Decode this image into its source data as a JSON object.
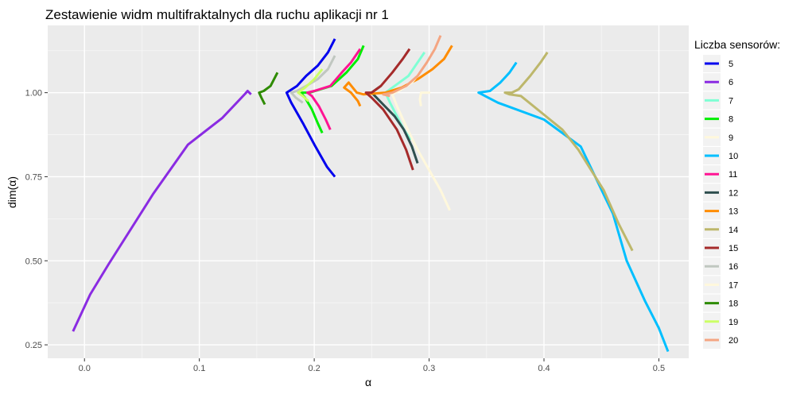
{
  "chart_data": {
    "type": "line",
    "title": "Zestawienie widm multifraktalnych dla ruchu aplikacji nr 1",
    "xlabel": "α",
    "ylabel": "dim(α)",
    "xlim": [
      -0.032,
      0.526
    ],
    "ylim": [
      0.21,
      1.2
    ],
    "x_ticks": [
      0.0,
      0.1,
      0.2,
      0.3,
      0.4,
      0.5
    ],
    "x_tick_labels": [
      "0.0",
      "0.1",
      "0.2",
      "0.3",
      "0.4",
      "0.5"
    ],
    "y_ticks": [
      0.25,
      0.5,
      0.75,
      1.0
    ],
    "y_tick_labels": [
      "0.25",
      "0.50",
      "0.75",
      "1.00"
    ],
    "grid": true,
    "panel_background": "#ebebeb",
    "legend": {
      "title": "Liczba sensorów:",
      "position": "right"
    },
    "series": [
      {
        "name": "5",
        "color": "#0000ee",
        "points": [
          [
            0.218,
            1.16
          ],
          [
            0.212,
            1.12
          ],
          [
            0.203,
            1.08
          ],
          [
            0.193,
            1.05
          ],
          [
            0.185,
            1.02
          ],
          [
            0.176,
            1.0
          ],
          [
            0.18,
            0.97
          ],
          [
            0.19,
            0.91
          ],
          [
            0.201,
            0.84
          ],
          [
            0.211,
            0.78
          ],
          [
            0.218,
            0.75
          ]
        ]
      },
      {
        "name": "6",
        "color": "#8a2be2",
        "points": [
          [
            0.145,
            0.995
          ],
          [
            0.142,
            1.005
          ],
          [
            0.14,
            0.997
          ],
          [
            0.12,
            0.925
          ],
          [
            0.09,
            0.845
          ],
          [
            0.06,
            0.7
          ],
          [
            0.021,
            0.49
          ],
          [
            0.005,
            0.4
          ],
          [
            -0.01,
            0.29
          ]
        ]
      },
      {
        "name": "7",
        "color": "#7fffd4",
        "points": [
          [
            0.296,
            1.12
          ],
          [
            0.29,
            1.09
          ],
          [
            0.282,
            1.05
          ],
          [
            0.27,
            1.02
          ],
          [
            0.262,
            1.0
          ],
          [
            0.266,
            0.97
          ],
          [
            0.272,
            0.93
          ],
          [
            0.278,
            0.89
          ],
          [
            0.284,
            0.86
          ]
        ]
      },
      {
        "name": "8",
        "color": "#00ee00",
        "points": [
          [
            0.243,
            1.14
          ],
          [
            0.238,
            1.1
          ],
          [
            0.228,
            1.06
          ],
          [
            0.215,
            1.02
          ],
          [
            0.196,
            1.0
          ],
          [
            0.188,
            1.0
          ],
          [
            0.192,
            0.985
          ],
          [
            0.198,
            0.95
          ],
          [
            0.203,
            0.91
          ],
          [
            0.207,
            0.88
          ]
        ]
      },
      {
        "name": "9",
        "color": "#fff8dc",
        "points": [
          [
            0.301,
            1.0
          ],
          [
            0.293,
            1.0
          ],
          [
            0.292,
            0.98
          ],
          [
            0.293,
            0.96
          ]
        ]
      },
      {
        "name": "10",
        "color": "#00bfff",
        "points": [
          [
            0.376,
            1.09
          ],
          [
            0.37,
            1.06
          ],
          [
            0.362,
            1.03
          ],
          [
            0.353,
            1.005
          ],
          [
            0.343,
            1.0
          ],
          [
            0.36,
            0.97
          ],
          [
            0.4,
            0.92
          ],
          [
            0.432,
            0.84
          ],
          [
            0.46,
            0.64
          ],
          [
            0.472,
            0.5
          ],
          [
            0.488,
            0.38
          ],
          [
            0.5,
            0.3
          ],
          [
            0.508,
            0.23
          ]
        ]
      },
      {
        "name": "11",
        "color": "#ff1493",
        "points": [
          [
            0.24,
            1.13
          ],
          [
            0.232,
            1.09
          ],
          [
            0.224,
            1.06
          ],
          [
            0.214,
            1.02
          ],
          [
            0.2,
            1.005
          ],
          [
            0.194,
            1.0
          ],
          [
            0.198,
            0.99
          ],
          [
            0.204,
            0.96
          ],
          [
            0.21,
            0.92
          ],
          [
            0.214,
            0.89
          ]
        ]
      },
      {
        "name": "12",
        "color": "#2f4f4f",
        "points": [
          [
            0.258,
            1.02
          ],
          [
            0.254,
            1.01
          ],
          [
            0.25,
            1.0
          ],
          [
            0.26,
            0.965
          ],
          [
            0.27,
            0.93
          ],
          [
            0.278,
            0.89
          ],
          [
            0.285,
            0.84
          ],
          [
            0.29,
            0.79
          ]
        ]
      },
      {
        "name": "13",
        "color": "#ff8c00",
        "points": [
          [
            0.32,
            1.14
          ],
          [
            0.313,
            1.1
          ],
          [
            0.303,
            1.07
          ],
          [
            0.29,
            1.04
          ],
          [
            0.276,
            1.015
          ],
          [
            0.262,
            1.0
          ],
          [
            0.243,
            0.995
          ],
          [
            0.237,
            1.0
          ],
          [
            0.23,
            1.03
          ],
          [
            0.226,
            1.015
          ],
          [
            0.232,
            1.0
          ],
          [
            0.238,
            0.975
          ],
          [
            0.24,
            0.96
          ]
        ]
      },
      {
        "name": "14",
        "color": "#bdb76b",
        "points": [
          [
            0.403,
            1.12
          ],
          [
            0.397,
            1.09
          ],
          [
            0.388,
            1.05
          ],
          [
            0.378,
            1.01
          ],
          [
            0.372,
            1.0
          ],
          [
            0.366,
            1.0
          ],
          [
            0.37,
            0.995
          ],
          [
            0.38,
            0.99
          ],
          [
            0.398,
            0.94
          ],
          [
            0.416,
            0.89
          ],
          [
            0.43,
            0.83
          ],
          [
            0.452,
            0.71
          ],
          [
            0.465,
            0.61
          ],
          [
            0.477,
            0.53
          ]
        ]
      },
      {
        "name": "15",
        "color": "#a52a2a",
        "points": [
          [
            0.283,
            1.13
          ],
          [
            0.277,
            1.1
          ],
          [
            0.268,
            1.06
          ],
          [
            0.258,
            1.02
          ],
          [
            0.25,
            1.0
          ],
          [
            0.245,
            1.0
          ],
          [
            0.25,
            0.985
          ],
          [
            0.26,
            0.95
          ],
          [
            0.272,
            0.89
          ],
          [
            0.28,
            0.83
          ],
          [
            0.286,
            0.77
          ]
        ]
      },
      {
        "name": "16",
        "color": "#c0c7c0",
        "points": [
          [
            0.218,
            1.11
          ],
          [
            0.212,
            1.07
          ],
          [
            0.203,
            1.04
          ],
          [
            0.193,
            1.02
          ],
          [
            0.185,
            1.005
          ],
          [
            0.18,
            1.0
          ],
          [
            0.184,
            0.985
          ],
          [
            0.19,
            0.97
          ]
        ]
      },
      {
        "name": "17",
        "color": "#fff8dc",
        "points": [
          [
            0.292,
            1.06
          ],
          [
            0.285,
            1.03
          ],
          [
            0.276,
            1.01
          ],
          [
            0.268,
            0.995
          ],
          [
            0.272,
            0.96
          ],
          [
            0.28,
            0.9
          ],
          [
            0.29,
            0.83
          ],
          [
            0.3,
            0.77
          ],
          [
            0.31,
            0.71
          ],
          [
            0.318,
            0.65
          ]
        ]
      },
      {
        "name": "18",
        "color": "#2e8b00",
        "points": [
          [
            0.168,
            1.06
          ],
          [
            0.162,
            1.02
          ],
          [
            0.156,
            1.005
          ],
          [
            0.152,
            1.0
          ],
          [
            0.154,
            0.985
          ],
          [
            0.157,
            0.965
          ]
        ]
      },
      {
        "name": "19",
        "color": "#ccff66",
        "points": [
          [
            0.207,
            1.07
          ],
          [
            0.2,
            1.04
          ],
          [
            0.192,
            1.015
          ],
          [
            0.186,
            1.0
          ],
          [
            0.19,
            0.99
          ],
          [
            0.195,
            0.975
          ]
        ]
      },
      {
        "name": "20",
        "color": "#f4a582",
        "points": [
          [
            0.31,
            1.17
          ],
          [
            0.305,
            1.13
          ],
          [
            0.298,
            1.09
          ],
          [
            0.29,
            1.05
          ],
          [
            0.28,
            1.02
          ],
          [
            0.268,
            1.0
          ],
          [
            0.26,
            0.995
          ],
          [
            0.266,
            0.99
          ]
        ]
      }
    ]
  }
}
